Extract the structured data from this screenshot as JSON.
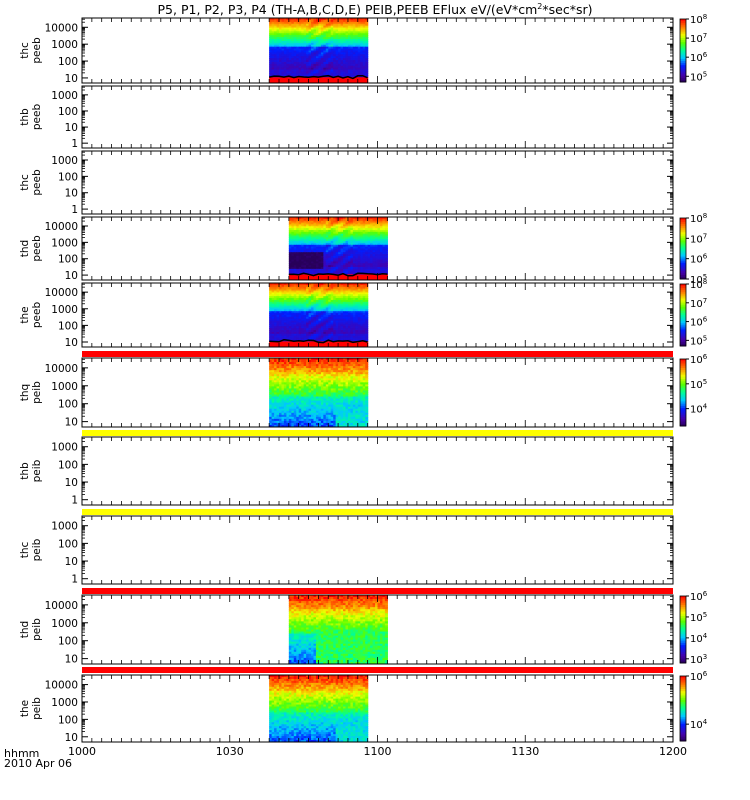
{
  "title": {
    "pre": "P5, P1, P2, P3, P4 (TH-A,B,C,D,E) PEIB,PEEB EFlux eV/(eV*cm",
    "sup": "2",
    "post": "*sec*sr)"
  },
  "footer": {
    "time_label": "hhmm",
    "date_label": "2010 Apr 06"
  },
  "colors": {
    "flag_red": "#ff0000",
    "flag_yellow": "#ffff00",
    "axis": "#000000"
  },
  "chart_data": {
    "type": "heatmap",
    "x_axis": {
      "range": [
        "10:00",
        "12:00"
      ],
      "ticks": [
        {
          "time": "10:00",
          "label": "1000"
        },
        {
          "time": "10:30",
          "label": "1030"
        },
        {
          "time": "11:00",
          "label": "1100"
        },
        {
          "time": "11:30",
          "label": "1130"
        },
        {
          "time": "12:00",
          "label": "1200"
        }
      ],
      "minor_tick_minutes": 2
    },
    "panels": [
      {
        "label": "thc peeb",
        "y_scale": "log",
        "yticks": [
          "10",
          "100",
          "1000",
          "10000"
        ],
        "data_start": "10:38",
        "data_end": "10:58",
        "style": "peeb",
        "has_data": true,
        "colorbar": {
          "scale": "log",
          "range": [
            "10^4.7",
            "10^8"
          ],
          "ticks": [
            "10^5",
            "10^6",
            "10^7",
            "10^8"
          ]
        }
      },
      {
        "label": "thb peeb",
        "y_scale": "log",
        "yticks": [
          "1",
          "10",
          "100",
          "1000"
        ],
        "has_data": false
      },
      {
        "label": "thc peeb",
        "y_scale": "log",
        "yticks": [
          "1",
          "10",
          "100",
          "1000"
        ],
        "has_data": false
      },
      {
        "label": "thd peeb",
        "y_scale": "log",
        "yticks": [
          "10",
          "100",
          "1000",
          "10000"
        ],
        "data_start": "10:42",
        "data_end": "11:02",
        "style": "peeb_dark",
        "has_data": true,
        "colorbar": {
          "scale": "log",
          "range": [
            "10^5",
            "10^8"
          ],
          "ticks": [
            "10^5",
            "10^6",
            "10^7",
            "10^8"
          ]
        }
      },
      {
        "label": "the peeb",
        "y_scale": "log",
        "yticks": [
          "10",
          "100",
          "1000",
          "10000"
        ],
        "data_start": "10:38",
        "data_end": "10:58",
        "style": "peeb",
        "has_data": true,
        "colorbar": {
          "scale": "log",
          "range": [
            "10^4.7",
            "10^8"
          ],
          "ticks": [
            "10^5",
            "10^6",
            "10^7",
            "10^8"
          ]
        }
      },
      {
        "label": "thq peib",
        "y_scale": "log",
        "yticks": [
          "10",
          "100",
          "1000",
          "10000"
        ],
        "data_start": "10:38",
        "data_end": "10:58",
        "style": "peib",
        "has_data": true,
        "flag": "red",
        "colorbar": {
          "scale": "log",
          "range": [
            "10^3.3",
            "10^6"
          ],
          "ticks": [
            "10^4",
            "10^5",
            "10^6"
          ]
        }
      },
      {
        "label": "thb peib",
        "y_scale": "log",
        "yticks": [
          "1",
          "10",
          "100",
          "1000"
        ],
        "has_data": false,
        "flag": "yellow"
      },
      {
        "label": "thc peib",
        "y_scale": "log",
        "yticks": [
          "1",
          "10",
          "100",
          "1000"
        ],
        "has_data": false,
        "flag": "yellow"
      },
      {
        "label": "thd peib",
        "y_scale": "log",
        "yticks": [
          "10",
          "100",
          "1000",
          "10000"
        ],
        "data_start": "10:42",
        "data_end": "11:02",
        "style": "peib_green",
        "has_data": true,
        "flag": "red",
        "colorbar": {
          "scale": "log",
          "range": [
            "10^2.8",
            "10^6"
          ],
          "ticks": [
            "10^3",
            "10^4",
            "10^5",
            "10^6"
          ]
        }
      },
      {
        "label": "the peib",
        "y_scale": "log",
        "yticks": [
          "10",
          "100",
          "1000",
          "10000"
        ],
        "data_start": "10:38",
        "data_end": "10:58",
        "style": "peib",
        "has_data": true,
        "flag": "red",
        "colorbar": {
          "scale": "log",
          "range": [
            "10^3.3",
            "10^6"
          ],
          "ticks": [
            "10^4",
            "10^6"
          ]
        }
      }
    ]
  }
}
